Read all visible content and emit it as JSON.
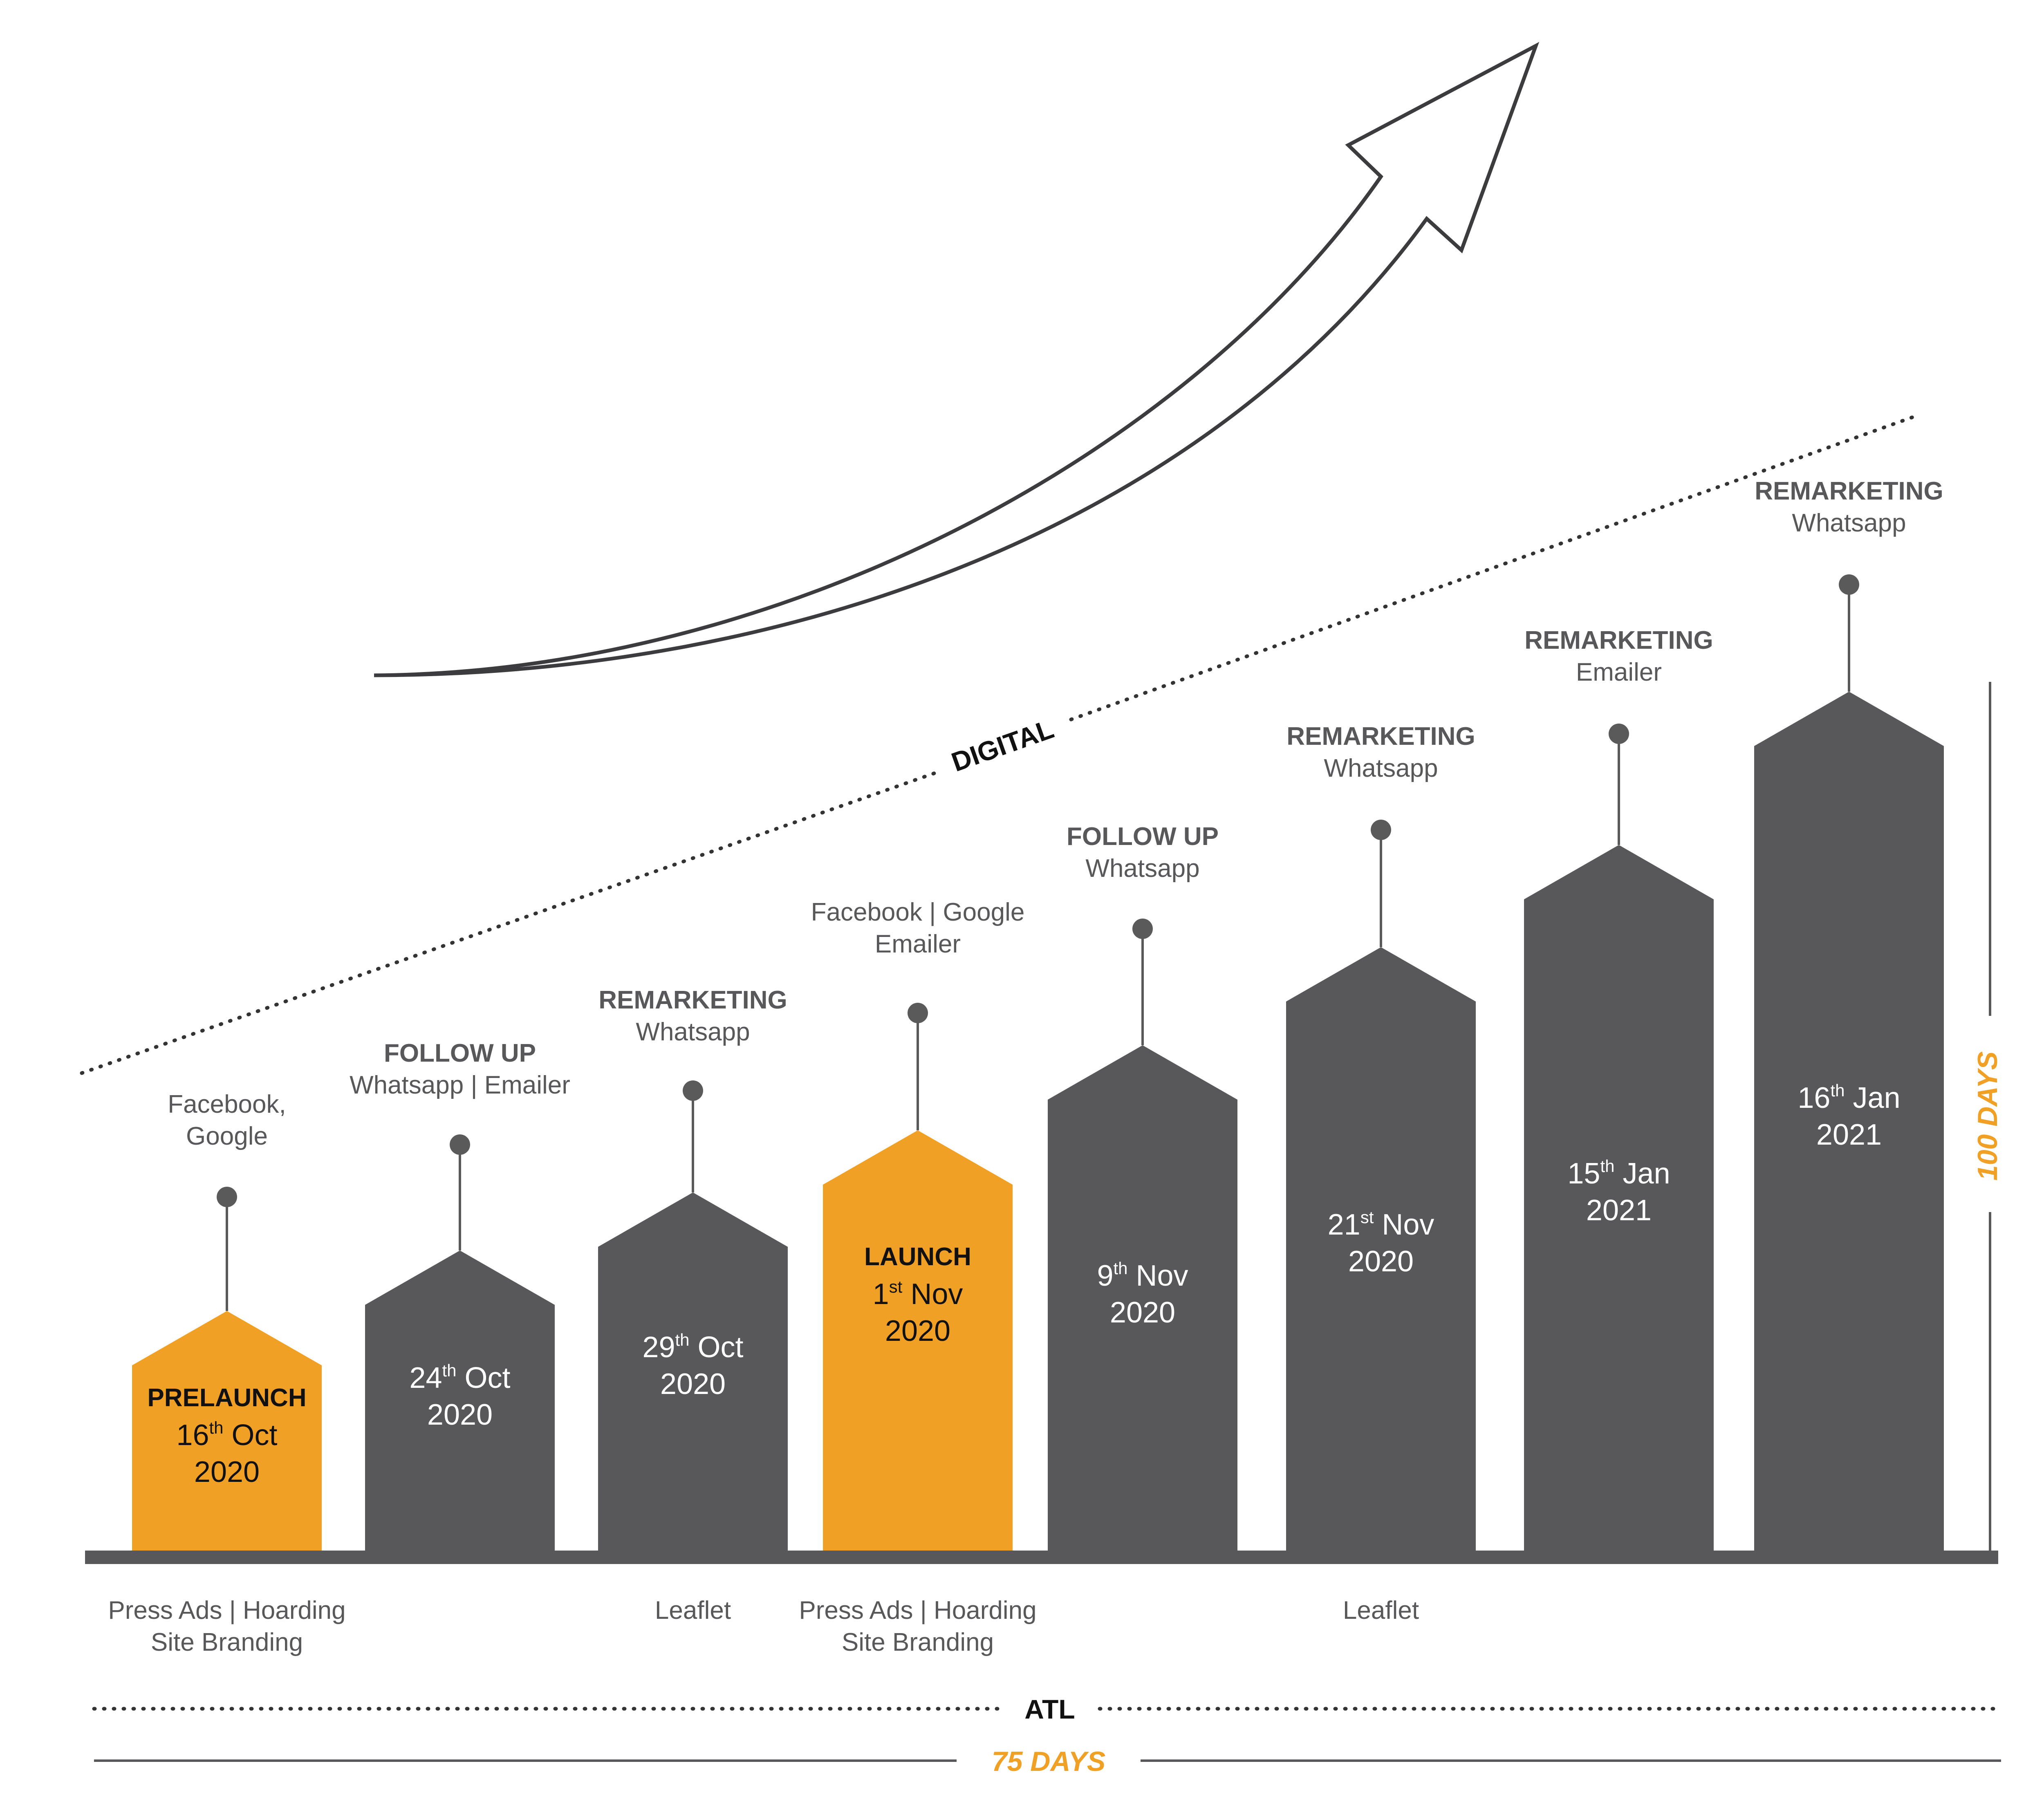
{
  "colors": {
    "gray": "#58585a",
    "orange": "#f0a024",
    "line": "#5a5a5a",
    "text_gray": "#58585a",
    "black": "#111111"
  },
  "digital_label": "DIGITAL",
  "atl_label": "ATL",
  "days_75": "75 DAYS",
  "days_100": "100 DAYS",
  "milestones": [
    {
      "color": "orange",
      "stage": "PRELAUNCH",
      "day": "16",
      "sup": "th",
      "month": "Oct",
      "year": "2020",
      "digital_title": "",
      "digital_lines": [
        "Facebook,",
        "Google"
      ],
      "atl_lines": [
        "Press Ads | Hoarding",
        "Site Branding"
      ]
    },
    {
      "color": "gray",
      "stage": "",
      "day": "24",
      "sup": "th",
      "month": "Oct",
      "year": "2020",
      "digital_title": "FOLLOW UP",
      "digital_lines": [
        "Whatsapp | Emailer"
      ],
      "atl_lines": []
    },
    {
      "color": "gray",
      "stage": "",
      "day": "29",
      "sup": "th",
      "month": "Oct",
      "year": "2020",
      "digital_title": "REMARKETING",
      "digital_lines": [
        "Whatsapp"
      ],
      "atl_lines": [
        "Leaflet"
      ]
    },
    {
      "color": "orange",
      "stage": "LAUNCH",
      "day": "1",
      "sup": "st",
      "month": "Nov",
      "year": "2020",
      "digital_title": "",
      "digital_lines": [
        "Facebook | Google",
        "Emailer"
      ],
      "atl_lines": [
        "Press Ads | Hoarding",
        "Site Branding"
      ]
    },
    {
      "color": "gray",
      "stage": "",
      "day": "9",
      "sup": "th",
      "month": "Nov",
      "year": "2020",
      "digital_title": "FOLLOW UP",
      "digital_lines": [
        "Whatsapp"
      ],
      "atl_lines": []
    },
    {
      "color": "gray",
      "stage": "",
      "day": "21",
      "sup": "st",
      "month": "Nov",
      "year": "2020",
      "digital_title": "REMARKETING",
      "digital_lines": [
        "Whatsapp"
      ],
      "atl_lines": [
        "Leaflet"
      ]
    },
    {
      "color": "gray",
      "stage": "",
      "day": "15",
      "sup": "th",
      "month": "Jan",
      "year": "2021",
      "digital_title": "REMARKETING",
      "digital_lines": [
        "Emailer"
      ],
      "atl_lines": []
    },
    {
      "color": "gray",
      "stage": "",
      "day": "16",
      "sup": "th",
      "month": "Jan",
      "year": "2021",
      "digital_title": "REMARKETING",
      "digital_lines": [
        "Whatsapp"
      ],
      "atl_lines": []
    }
  ]
}
